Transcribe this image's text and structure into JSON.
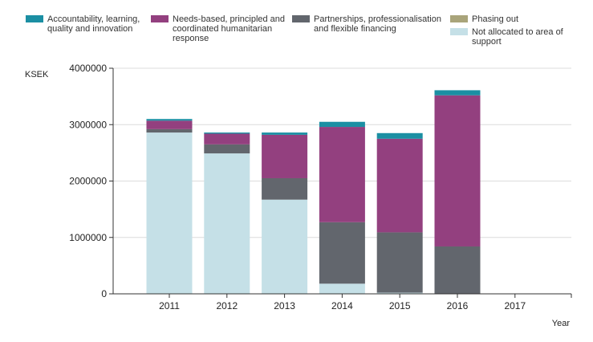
{
  "chart_data": {
    "type": "bar",
    "stacked": true,
    "ylabel": "KSEK",
    "xlabel": "Year",
    "ylim": [
      0,
      4000000
    ],
    "yticks": [
      0,
      1000000,
      2000000,
      3000000,
      4000000
    ],
    "grid": true,
    "legend_position": "top",
    "categories": [
      "2011",
      "2012",
      "2013",
      "2014",
      "2015",
      "2016",
      "2017"
    ],
    "series": [
      {
        "name": "Not allocated to area of support",
        "color": "#c5e0e7",
        "values": [
          2860000,
          2490000,
          1670000,
          180000,
          20000,
          0,
          0
        ]
      },
      {
        "name": "Phasing out",
        "color": "#a9a47a",
        "values": [
          0,
          0,
          0,
          0,
          0,
          0,
          0
        ]
      },
      {
        "name": "Partnerships, professionalisation and flexible financing",
        "color": "#62666d",
        "values": [
          60000,
          160000,
          380000,
          1090000,
          1070000,
          840000,
          0
        ]
      },
      {
        "name": "Needs-based, principled and coordinated humanitarian response",
        "color": "#93407f",
        "values": [
          150000,
          190000,
          770000,
          1690000,
          1660000,
          2680000,
          0
        ]
      },
      {
        "name": "Accountability, learning, quality and innovation",
        "color": "#1b8fa3",
        "values": [
          30000,
          20000,
          40000,
          90000,
          100000,
          90000,
          0
        ]
      }
    ],
    "legend": [
      {
        "lines": [
          "Accountability, learning,",
          "quality and innovation"
        ],
        "color": "#1b8fa3"
      },
      {
        "lines": [
          "Needs-based, principled and",
          "coordinated humanitarian",
          "response"
        ],
        "color": "#93407f"
      },
      {
        "lines": [
          "Partnerships, professionalisation",
          "and flexible financing"
        ],
        "color": "#62666d"
      },
      {
        "lines": [
          "Phasing out"
        ],
        "color": "#a9a47a"
      },
      {
        "lines": [
          "Not allocated to area of",
          "support"
        ],
        "color": "#c5e0e7"
      }
    ]
  }
}
